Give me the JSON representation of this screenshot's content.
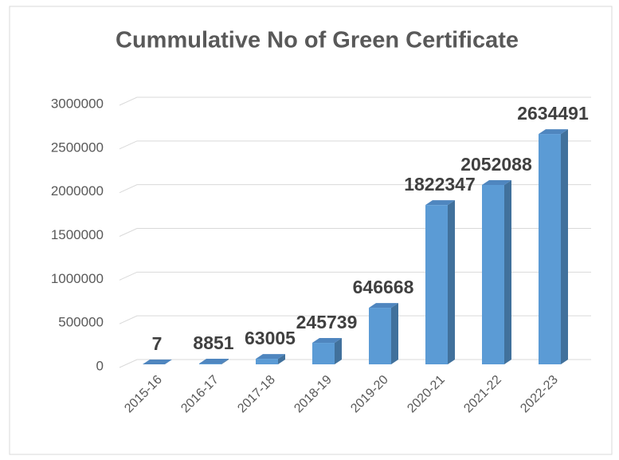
{
  "chart_data": {
    "type": "bar",
    "title": "Cummulative  No of Green Certificate",
    "categories": [
      "2015-16",
      "2016-17",
      "2017-18",
      "2018-19",
      "2019-20",
      "2020-21",
      "2021-22",
      "2022-23"
    ],
    "values": [
      7,
      8851,
      63005,
      245739,
      646668,
      1822347,
      2052088,
      2634491
    ],
    "color": "#5b9bd5",
    "ylim": [
      0,
      3000000
    ],
    "yticks": [
      0,
      500000,
      1000000,
      1500000,
      2000000,
      2500000,
      3000000
    ],
    "grid": true
  }
}
